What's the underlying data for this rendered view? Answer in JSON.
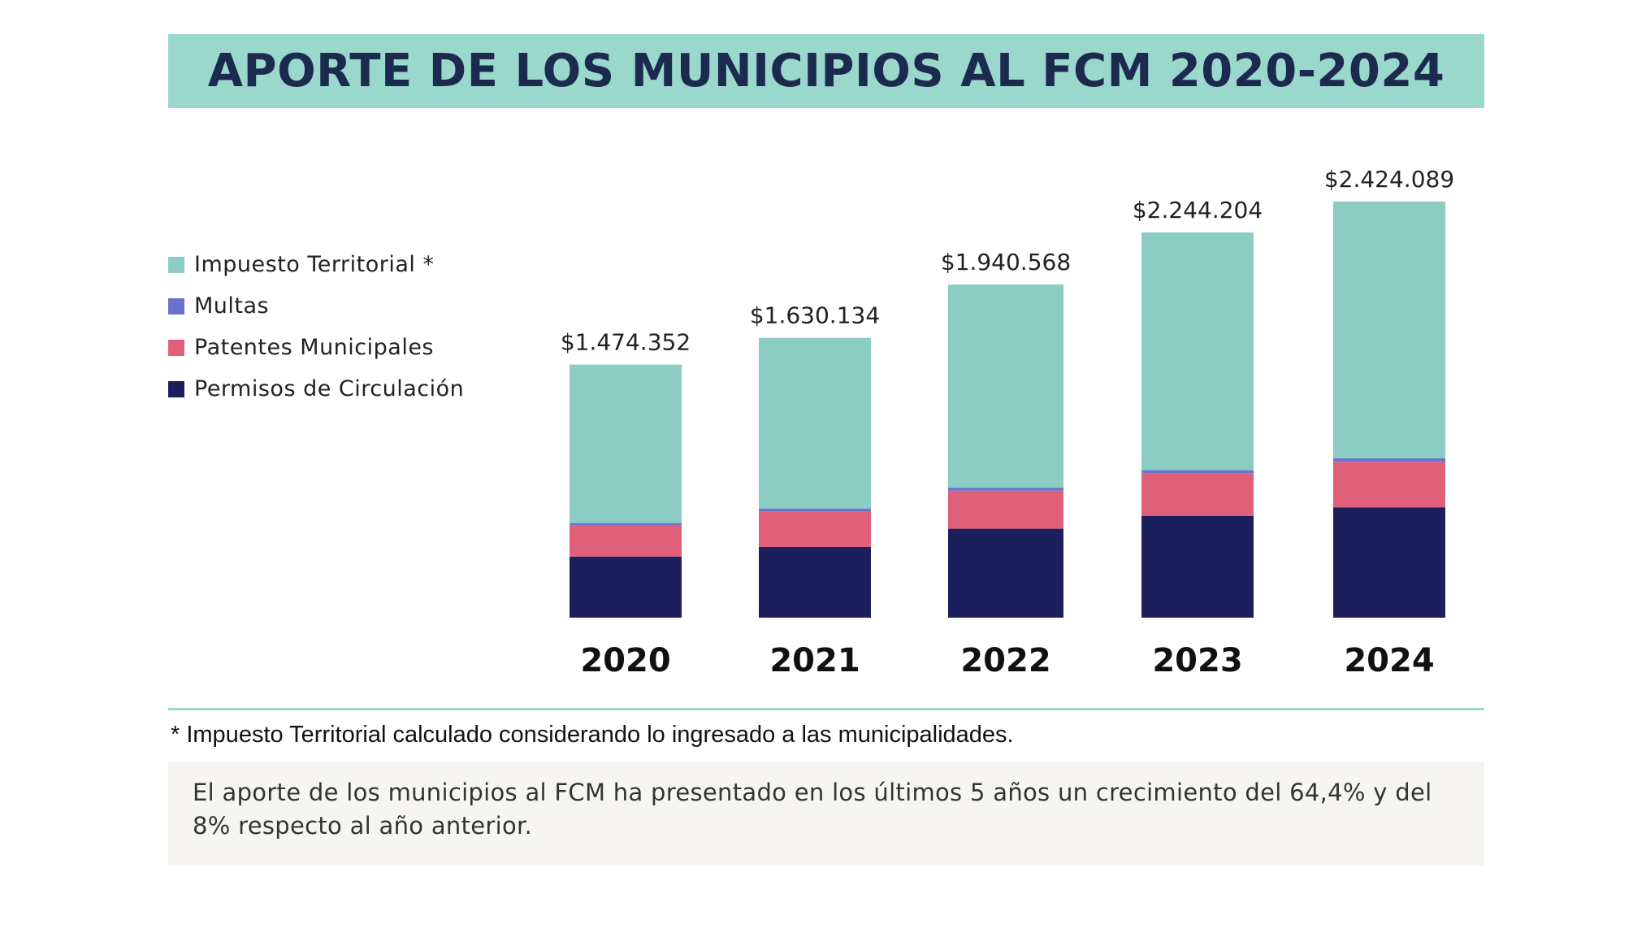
{
  "header": {
    "title": "APORTE DE LOS MUNICIPIOS AL FCM 2020-2024"
  },
  "colors": {
    "impuesto": "#8bcdc3",
    "multas": "#6b73cc",
    "patentes": "#e0607a",
    "permisos": "#1b1f5c"
  },
  "legend": {
    "items": [
      {
        "label": "Impuesto Territorial *",
        "color": "#8bcdc3"
      },
      {
        "label": "Multas",
        "color": "#6b73cc"
      },
      {
        "label": "Patentes Municipales",
        "color": "#e0607a"
      },
      {
        "label": "Permisos de  Circulación",
        "color": "#1b1f5c"
      }
    ]
  },
  "chart_data": {
    "type": "bar",
    "stacked": true,
    "categories": [
      "2020",
      "2021",
      "2022",
      "2023",
      "2024"
    ],
    "totals_labels": [
      "$1.474.352",
      "$1.630.134",
      "$1.940.568",
      "$2.244.204",
      "$2.424.089"
    ],
    "totals": [
      1474352,
      1630134,
      1940568,
      2244204,
      2424089
    ],
    "series": [
      {
        "name": "Permisos de  Circulación",
        "color": "#1b1f5c",
        "values": [
          356000,
          412000,
          518000,
          593000,
          643000
        ]
      },
      {
        "name": "Patentes Municipales",
        "color": "#e0607a",
        "values": [
          180000,
          208000,
          222000,
          248000,
          265000
        ]
      },
      {
        "name": "Multas",
        "color": "#6b73cc",
        "values": [
          15000,
          16000,
          17000,
          18000,
          20000
        ]
      },
      {
        "name": "Impuesto Territorial *",
        "color": "#8bcdc3",
        "values": [
          923352,
          994134,
          1183568,
          1385204,
          1496089
        ]
      }
    ],
    "ylim": [
      0,
      2424089
    ],
    "grid": false,
    "legend_position": "left"
  },
  "footnote": "* Impuesto Territorial calculado considerando lo ingresado a las municipalidades.",
  "summary": "El aporte de los municipios al FCM ha presentado en los últimos 5 años un crecimiento del 64,4% y del 8% respecto al año anterior."
}
